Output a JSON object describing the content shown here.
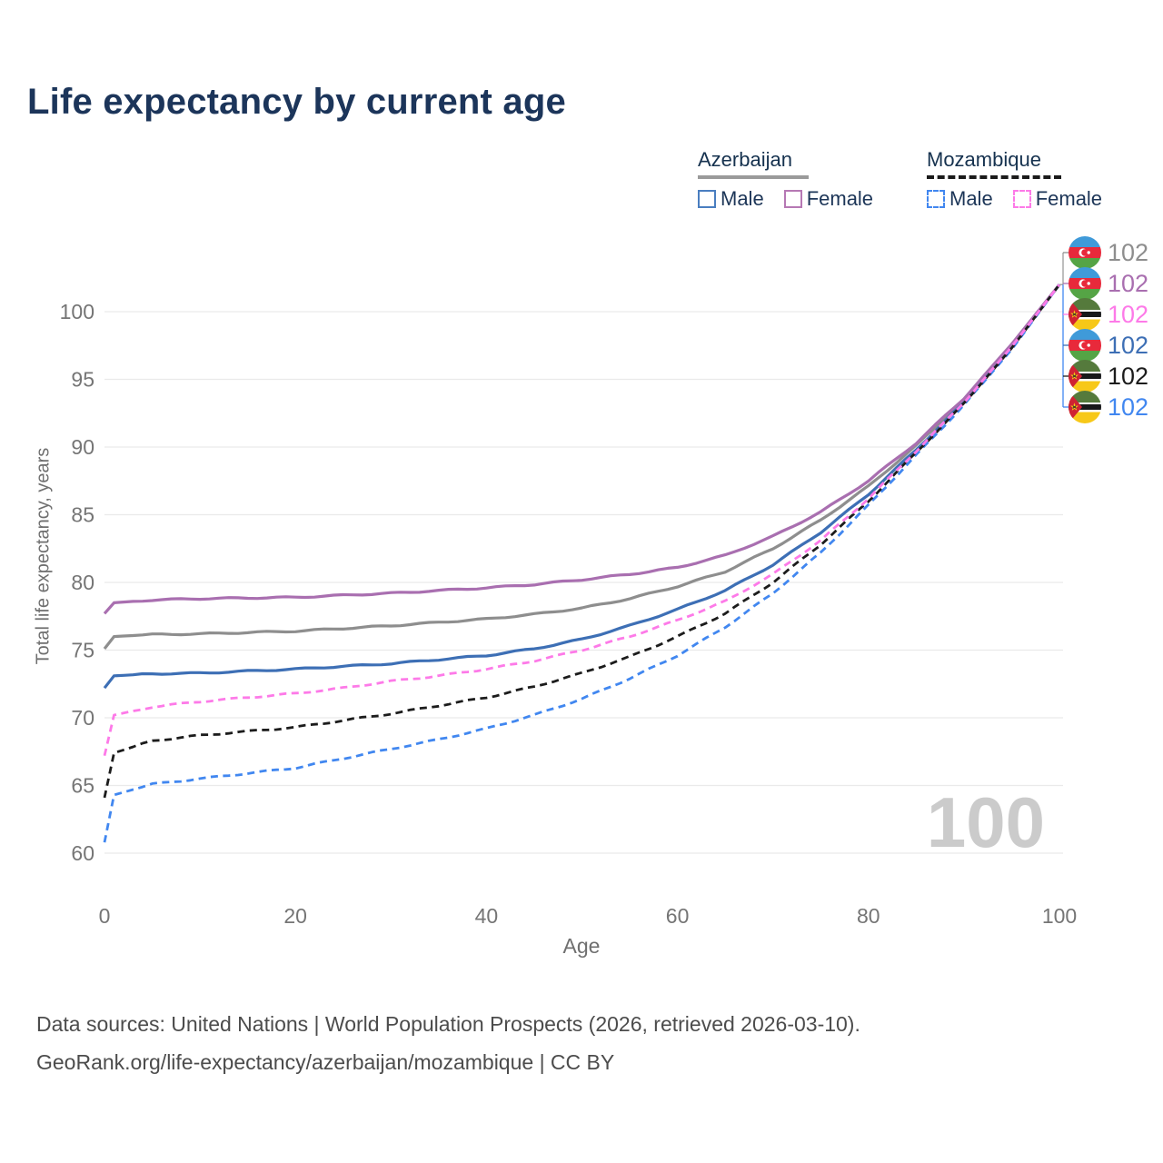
{
  "title": "Life expectancy by current age",
  "watermark": "100",
  "legend": {
    "groups": [
      {
        "label": "Azerbaijan",
        "line_style": "solid",
        "underline_color": "#9a9a9a",
        "items": [
          {
            "label": "Male",
            "color": "#4a7ec0"
          },
          {
            "label": "Female",
            "color": "#b678b4"
          }
        ]
      },
      {
        "label": "Mozambique",
        "line_style": "dashed",
        "underline_color": "#1a1a1a",
        "items": [
          {
            "label": "Male",
            "color": "#4187f0"
          },
          {
            "label": "Female",
            "color": "#fd7ae8"
          }
        ]
      }
    ]
  },
  "footer": {
    "line1": "Data sources: United Nations | World Population Prospects (2026, retrieved 2026-03-10).",
    "line2": "GeoRank.org/life-expectancy/azerbaijan/mozambique | CC BY"
  },
  "chart_data": {
    "type": "line",
    "title": "Life expectancy by current age",
    "xlabel": "Age",
    "ylabel": "Total life expectancy, years",
    "xlim": [
      0,
      100
    ],
    "ylim": [
      60,
      102
    ],
    "xticks": [
      0,
      20,
      40,
      60,
      80,
      100
    ],
    "yticks": [
      60,
      65,
      70,
      75,
      80,
      85,
      90,
      95,
      100
    ],
    "grid": "horizontal",
    "legend_position": "top-right",
    "ages": [
      0,
      1,
      5,
      10,
      15,
      20,
      25,
      30,
      35,
      40,
      45,
      50,
      55,
      60,
      65,
      70,
      75,
      80,
      85,
      90,
      95,
      100
    ],
    "series": [
      {
        "name": "Azerbaijan (both sexes)",
        "country": "Azerbaijan",
        "flag": "az",
        "color": "#8e8e8e",
        "dash": false,
        "z": 1,
        "end_value": "102",
        "values": [
          75.1,
          76.0,
          76.15,
          76.2,
          76.3,
          76.4,
          76.6,
          76.8,
          77.05,
          77.3,
          77.65,
          78.1,
          78.8,
          79.7,
          80.8,
          82.5,
          84.6,
          87.1,
          90.1,
          93.5,
          97.5,
          102
        ]
      },
      {
        "name": "Azerbaijan Female",
        "country": "Azerbaijan",
        "flag": "az",
        "color": "#a96fb0",
        "dash": false,
        "z": 3,
        "end_value": "102",
        "values": [
          77.7,
          78.5,
          78.7,
          78.8,
          78.85,
          78.9,
          79.05,
          79.2,
          79.4,
          79.6,
          79.85,
          80.2,
          80.6,
          81.1,
          82.0,
          83.4,
          85.2,
          87.5,
          90.3,
          93.6,
          97.6,
          102
        ]
      },
      {
        "name": "Mozambique Female",
        "country": "Mozambique",
        "flag": "mz",
        "color": "#fd7ae8",
        "dash": true,
        "z": 6,
        "end_value": "102",
        "values": [
          67.2,
          70.2,
          70.8,
          71.2,
          71.5,
          71.8,
          72.2,
          72.7,
          73.1,
          73.6,
          74.2,
          75.0,
          76.0,
          77.2,
          78.6,
          80.6,
          83.1,
          86.2,
          89.7,
          93.3,
          97.4,
          102
        ]
      },
      {
        "name": "Azerbaijan Male",
        "country": "Azerbaijan",
        "flag": "az",
        "color": "#3d6fb5",
        "dash": false,
        "z": 2,
        "end_value": "102",
        "values": [
          72.2,
          73.1,
          73.25,
          73.3,
          73.45,
          73.6,
          73.8,
          74.0,
          74.3,
          74.6,
          75.1,
          75.8,
          76.8,
          78.0,
          79.4,
          81.3,
          83.7,
          86.5,
          89.8,
          93.3,
          97.4,
          102
        ]
      },
      {
        "name": "Mozambique (both sexes)",
        "country": "Mozambique",
        "flag": "mz",
        "color": "#1c1c1c",
        "dash": true,
        "z": 5,
        "end_value": "102",
        "values": [
          64.1,
          67.4,
          68.3,
          68.7,
          69.0,
          69.3,
          69.8,
          70.3,
          70.9,
          71.5,
          72.3,
          73.3,
          74.5,
          76.0,
          77.7,
          80.0,
          82.8,
          86.0,
          89.6,
          93.2,
          97.3,
          102
        ]
      },
      {
        "name": "Mozambique Male",
        "country": "Mozambique",
        "flag": "mz",
        "color": "#4187f0",
        "dash": true,
        "z": 4,
        "end_value": "102",
        "values": [
          60.8,
          64.3,
          65.1,
          65.5,
          65.9,
          66.3,
          67.0,
          67.7,
          68.4,
          69.2,
          70.2,
          71.4,
          72.9,
          74.6,
          76.7,
          79.2,
          82.2,
          85.7,
          89.4,
          93.1,
          97.2,
          102
        ]
      }
    ]
  }
}
